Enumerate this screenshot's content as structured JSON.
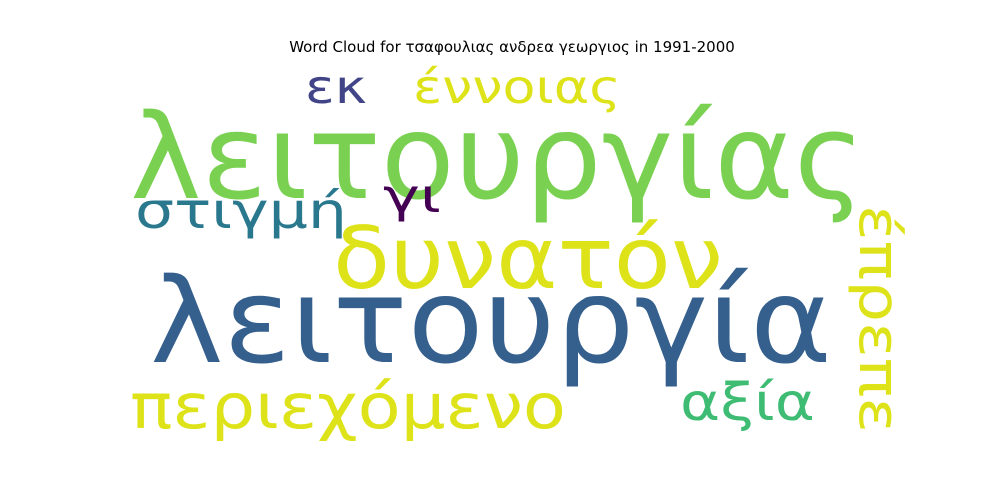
{
  "chart_data": {
    "type": "wordcloud",
    "title": "Word Cloud for τσαφουλιας ανδρεα γεωργιος in 1991-2000",
    "words": [
      {
        "text": "λειτουργίας",
        "weight": 1.0,
        "color": "#7ad151"
      },
      {
        "text": "λειτουργία",
        "weight": 1.0,
        "color": "#355f8d"
      },
      {
        "text": "δυνατόν",
        "weight": 0.72,
        "color": "#dde318"
      },
      {
        "text": "περιεχόμενο",
        "weight": 0.52,
        "color": "#dde318"
      },
      {
        "text": "στιγμή",
        "weight": 0.42,
        "color": "#2a788e"
      },
      {
        "text": "έπρεπε",
        "weight": 0.48,
        "color": "#dde318"
      },
      {
        "text": "αξία",
        "weight": 0.4,
        "color": "#3fbc73"
      },
      {
        "text": "έννοιας",
        "weight": 0.36,
        "color": "#dde318"
      },
      {
        "text": "εκ",
        "weight": 0.36,
        "color": "#414487"
      },
      {
        "text": "γι",
        "weight": 0.36,
        "color": "#440154"
      }
    ]
  }
}
